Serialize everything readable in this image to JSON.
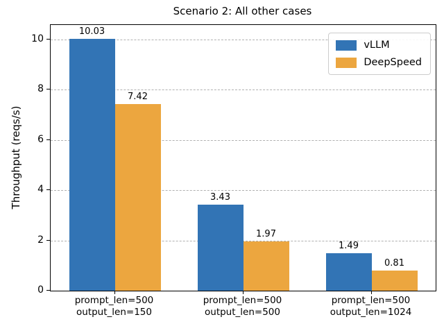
{
  "chart_data": {
    "type": "bar",
    "title": "Scenario 2: All other cases",
    "xlabel": "",
    "ylabel": "Throughput (reqs/s)",
    "categories": [
      "prompt_len=500\noutput_len=150",
      "prompt_len=500\noutput_len=500",
      "prompt_len=500\noutput_len=1024"
    ],
    "series": [
      {
        "name": "vLLM",
        "color": "#3274B5",
        "values": [
          10.03,
          3.43,
          1.49
        ]
      },
      {
        "name": "DeepSpeed",
        "color": "#ECA63F",
        "values": [
          7.42,
          1.97,
          0.81
        ]
      }
    ],
    "bar_value_labels": [
      "10.03",
      "7.42",
      "3.43",
      "1.97",
      "1.49",
      "0.81"
    ],
    "ylim": [
      0,
      10.58
    ],
    "yticks": [
      0,
      2,
      4,
      6,
      8,
      10
    ],
    "grid": "horizontal-dashed",
    "grid_color": "#b0b0b0",
    "legend_position": "upper right",
    "axis_color": "#000000",
    "background_color": "#ffffff"
  }
}
